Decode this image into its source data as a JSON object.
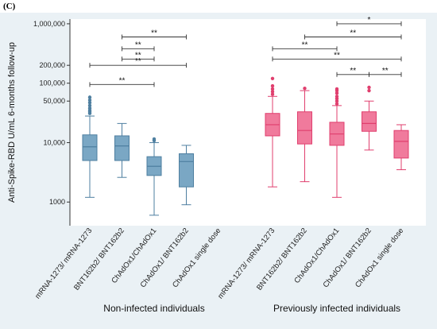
{
  "panel_label": "(C)",
  "chart_data": {
    "type": "box",
    "ylabel": "Anti-Spike-RBD U/mL 6-months follow-up",
    "yscale": "log",
    "ylim": [
      400,
      1200000
    ],
    "yticks": [
      {
        "value": 1000,
        "label": "1000"
      },
      {
        "value": 10000,
        "label": "10,000"
      },
      {
        "value": 50000,
        "label": "50,000"
      },
      {
        "value": 100000,
        "label": "100,000"
      },
      {
        "value": 200000,
        "label": "200,000"
      },
      {
        "value": 1000000,
        "label": "1,000,000"
      }
    ],
    "grid": false,
    "colors": {
      "Non-infected individuals": "#4e7fa0",
      "Previously infected individuals": "#e03f6e"
    },
    "fill_colors": {
      "Non-infected individuals": "#7aa7c4",
      "Previously infected individuals": "#f07a9c"
    },
    "groups": [
      {
        "name": "Non-infected individuals",
        "boxes": [
          {
            "label": "mRNA-1273/ mRNA-1273",
            "whisker_low": 1200,
            "q1": 5000,
            "median": 8500,
            "q3": 13500,
            "whisker_high": 28000,
            "outliers": [
              31000,
              33000,
              35000,
              38000,
              42000,
              47000,
              52000,
              58000
            ]
          },
          {
            "label": "BNT162b2/ BNT162b2",
            "whisker_low": 2600,
            "q1": 5000,
            "median": 8800,
            "q3": 13000,
            "whisker_high": 21000,
            "outliers": []
          },
          {
            "label": "ChAdOx1/ChAdOx1",
            "whisker_low": 600,
            "q1": 2800,
            "median": 4000,
            "q3": 5800,
            "whisker_high": 10000,
            "outliers": [
              10800,
              11500
            ]
          },
          {
            "label": "ChAdOx1/ BNT162b2",
            "whisker_low": 900,
            "q1": 1800,
            "median": 4800,
            "q3": 6500,
            "whisker_high": 9000,
            "outliers": []
          },
          {
            "label": "ChAdOx1 single dose",
            "whisker_low": null,
            "q1": null,
            "median": null,
            "q3": null,
            "whisker_high": null,
            "outliers": []
          }
        ]
      },
      {
        "name": "Previously infected individuals",
        "boxes": [
          {
            "label": "mRNA-1273/ mRNA-1273",
            "whisker_low": 1800,
            "q1": 13000,
            "median": 20000,
            "q3": 31000,
            "whisker_high": 60000,
            "outliers": [
              65000,
              72000,
              80000,
              90000,
              120000
            ]
          },
          {
            "label": "BNT162b2/ BNT162b2",
            "whisker_low": 2200,
            "q1": 9500,
            "median": 16000,
            "q3": 33000,
            "whisker_high": 75000,
            "outliers": [
              82000
            ]
          },
          {
            "label": "ChAdOx1/ChAdOx1",
            "whisker_low": 1200,
            "q1": 9000,
            "median": 14000,
            "q3": 22000,
            "whisker_high": 42000,
            "outliers": [
              45000,
              50000,
              55000,
              60000,
              68000,
              75000,
              80000
            ]
          },
          {
            "label": "ChAdOx1/ BNT162b2",
            "whisker_low": 7500,
            "q1": 15500,
            "median": 21000,
            "q3": 33000,
            "whisker_high": 50000,
            "outliers": [
              75000,
              85000
            ]
          },
          {
            "label": "ChAdOx1 single dose",
            "whisker_low": 3500,
            "q1": 5500,
            "median": 10500,
            "q3": 16000,
            "whisker_high": 20000,
            "outliers": []
          }
        ]
      }
    ],
    "significance": [
      {
        "group": "Non-infected individuals",
        "from": 0,
        "to": 3,
        "level": 200000,
        "label": "**"
      },
      {
        "group": "Non-infected individuals",
        "from": 0,
        "to": 2,
        "level": 95000,
        "label": "**"
      },
      {
        "group": "Non-infected individuals",
        "from": 1,
        "to": 3,
        "level": 600000,
        "label": "**"
      },
      {
        "group": "Non-infected individuals",
        "from": 1,
        "to": 2,
        "level": 380000,
        "label": "**"
      },
      {
        "group": "Non-infected individuals",
        "from": 1,
        "to": 2,
        "level": 255000,
        "label": "**"
      },
      {
        "group": "Previously infected individuals",
        "from": 2,
        "to": 4,
        "level": 1000000,
        "label": "*"
      },
      {
        "group": "Previously infected individuals",
        "from": 1,
        "to": 4,
        "level": 600000,
        "label": "**"
      },
      {
        "group": "Previously infected individuals",
        "from": 0,
        "to": 2,
        "level": 380000,
        "label": "**"
      },
      {
        "group": "Previously infected individuals",
        "from": 0,
        "to": 4,
        "level": 255000,
        "label": "**"
      },
      {
        "group": "Previously infected individuals",
        "from": 2,
        "to": 3,
        "level": 140000,
        "label": "**"
      },
      {
        "group": "Previously infected individuals",
        "from": 3,
        "to": 4,
        "level": 140000,
        "label": "**"
      }
    ]
  }
}
